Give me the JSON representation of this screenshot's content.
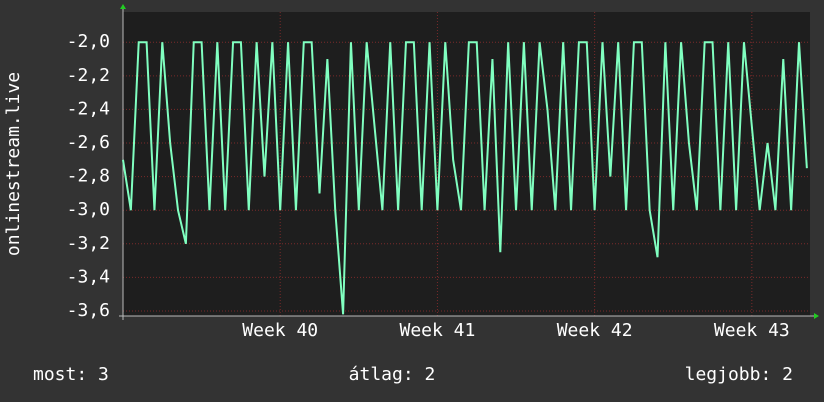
{
  "chart_data": {
    "type": "line",
    "y_label": "onlinestream.live",
    "x": [
      39.0,
      39.05,
      39.1,
      39.15,
      39.2,
      39.25,
      39.3,
      39.35,
      39.4,
      39.45,
      39.5,
      39.55,
      39.6,
      39.65,
      39.7,
      39.75,
      39.8,
      39.85,
      39.9,
      39.95,
      40.0,
      40.05,
      40.1,
      40.15,
      40.2,
      40.25,
      40.3,
      40.35,
      40.4,
      40.45,
      40.5,
      40.55,
      40.6,
      40.65,
      40.7,
      40.75,
      40.8,
      40.85,
      40.9,
      40.95,
      41.0,
      41.05,
      41.1,
      41.15,
      41.2,
      41.25,
      41.3,
      41.35,
      41.4,
      41.45,
      41.5,
      41.55,
      41.6,
      41.65,
      41.7,
      41.75,
      41.8,
      41.85,
      41.9,
      41.95,
      42.0,
      42.05,
      42.1,
      42.15,
      42.2,
      42.25,
      42.3,
      42.35,
      42.4,
      42.45,
      42.5,
      42.55,
      42.6,
      42.65,
      42.7,
      42.75,
      42.8,
      42.85,
      42.9,
      42.95,
      43.0,
      43.05,
      43.1,
      43.15,
      43.2,
      43.25,
      43.3,
      43.35
    ],
    "values": [
      -2.7,
      -3.0,
      -2.0,
      -2.0,
      -3.0,
      -2.0,
      -2.6,
      -3.0,
      -3.2,
      -2.0,
      -2.0,
      -3.0,
      -2.0,
      -3.0,
      -2.0,
      -2.0,
      -3.0,
      -2.0,
      -2.8,
      -2.0,
      -3.0,
      -2.0,
      -3.0,
      -2.0,
      -2.0,
      -2.9,
      -2.1,
      -3.0,
      -3.62,
      -2.0,
      -3.0,
      -2.0,
      -2.5,
      -3.0,
      -2.0,
      -3.0,
      -2.0,
      -2.0,
      -3.0,
      -2.0,
      -3.0,
      -2.0,
      -2.7,
      -3.0,
      -2.0,
      -2.0,
      -3.0,
      -2.1,
      -3.25,
      -2.0,
      -3.0,
      -2.0,
      -3.0,
      -2.0,
      -2.4,
      -3.0,
      -2.0,
      -3.0,
      -2.0,
      -2.0,
      -3.0,
      -2.0,
      -2.8,
      -2.0,
      -3.0,
      -2.0,
      -2.0,
      -3.0,
      -3.28,
      -2.0,
      -3.0,
      -2.0,
      -2.6,
      -3.0,
      -2.0,
      -2.0,
      -3.0,
      -2.0,
      -3.0,
      -2.0,
      -2.5,
      -3.0,
      -2.6,
      -3.0,
      -2.1,
      -3.0,
      -2.0,
      -2.75
    ],
    "color": "#80ffc0",
    "xlim": [
      39.0,
      43.37
    ],
    "xticks": [
      {
        "value": 40,
        "label": "Week 40"
      },
      {
        "value": 41,
        "label": "Week 41"
      },
      {
        "value": 42,
        "label": "Week 42"
      },
      {
        "value": 43,
        "label": "Week 43"
      }
    ],
    "ylim": [
      -3.63,
      -1.82
    ],
    "yticks": [
      {
        "value": -2.0,
        "label": "-2,0"
      },
      {
        "value": -2.2,
        "label": "-2,2"
      },
      {
        "value": -2.4,
        "label": "-2,4"
      },
      {
        "value": -2.6,
        "label": "-2,6"
      },
      {
        "value": -2.8,
        "label": "-2,8"
      },
      {
        "value": -3.0,
        "label": "-3,0"
      },
      {
        "value": -3.2,
        "label": "-3,2"
      },
      {
        "value": -3.4,
        "label": "-3,4"
      },
      {
        "value": -3.6,
        "label": "-3,6"
      }
    ],
    "grid": true,
    "footer": [
      "most: 3",
      "átlag: 2",
      "legjobb: 2"
    ]
  }
}
